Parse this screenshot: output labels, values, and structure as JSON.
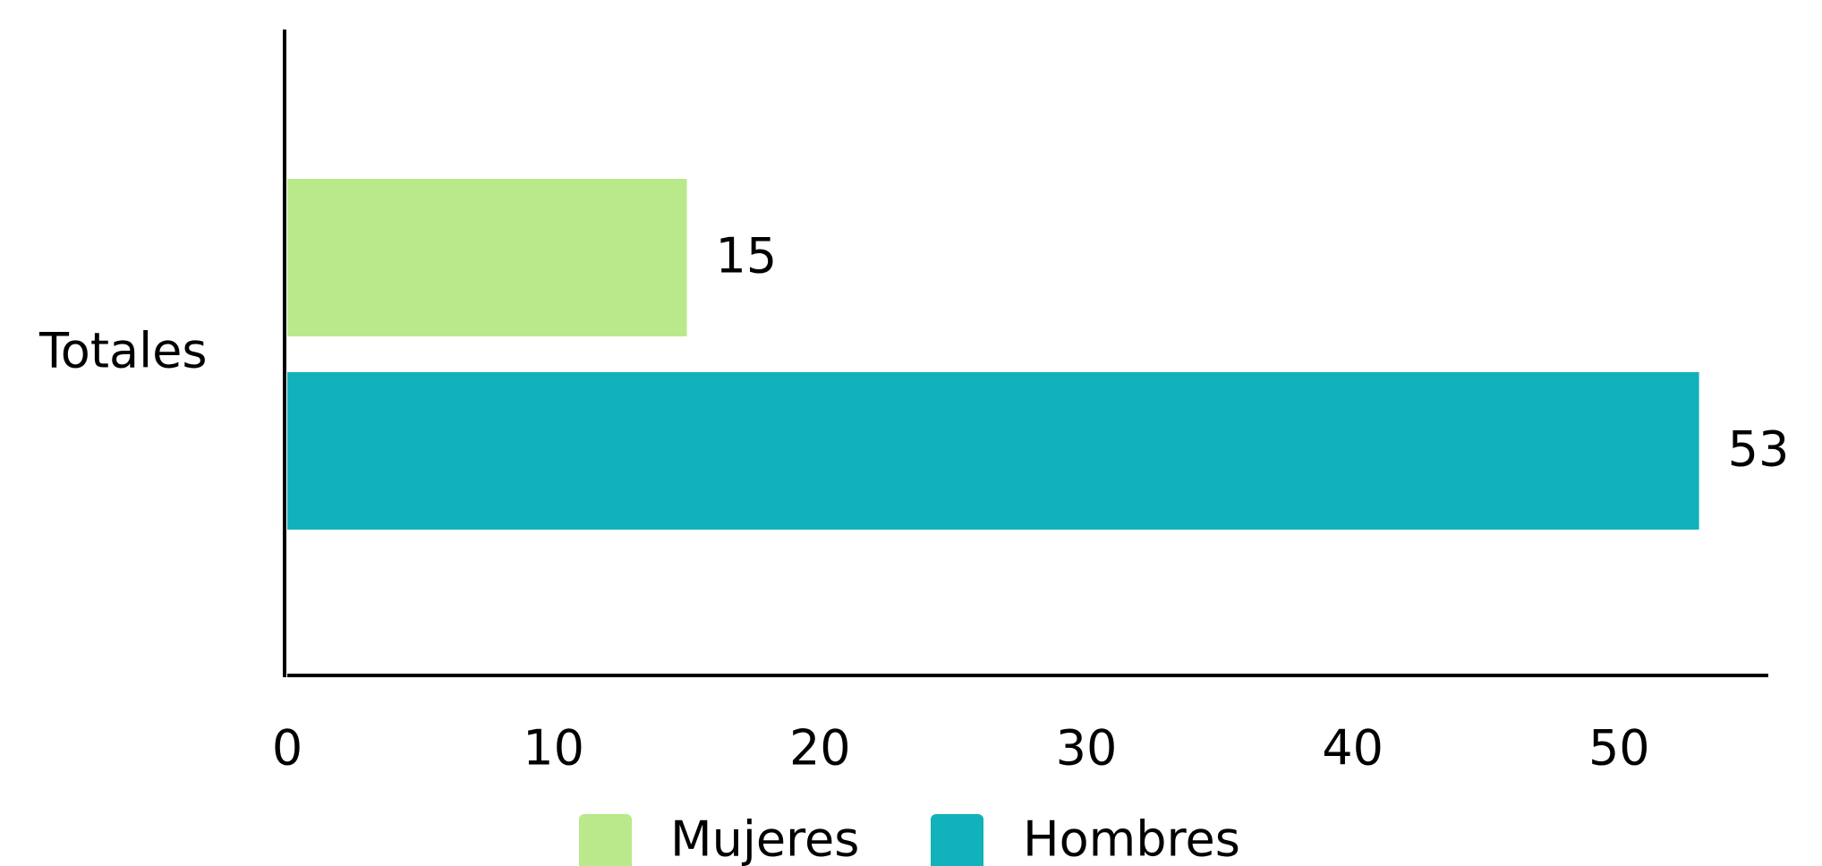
{
  "chart_data": {
    "type": "bar",
    "orientation": "horizontal",
    "categories": [
      "Totales"
    ],
    "series": [
      {
        "name": "Mujeres",
        "color": "#b9e98a",
        "values": [
          15
        ]
      },
      {
        "name": "Hombres",
        "color": "#11b2bc",
        "values": [
          53
        ]
      }
    ],
    "xlim": [
      0,
      55.6
    ],
    "xticks": [
      0,
      10,
      20,
      30,
      40,
      50
    ],
    "grid": false,
    "legend": "bottom",
    "data_labels": true
  }
}
